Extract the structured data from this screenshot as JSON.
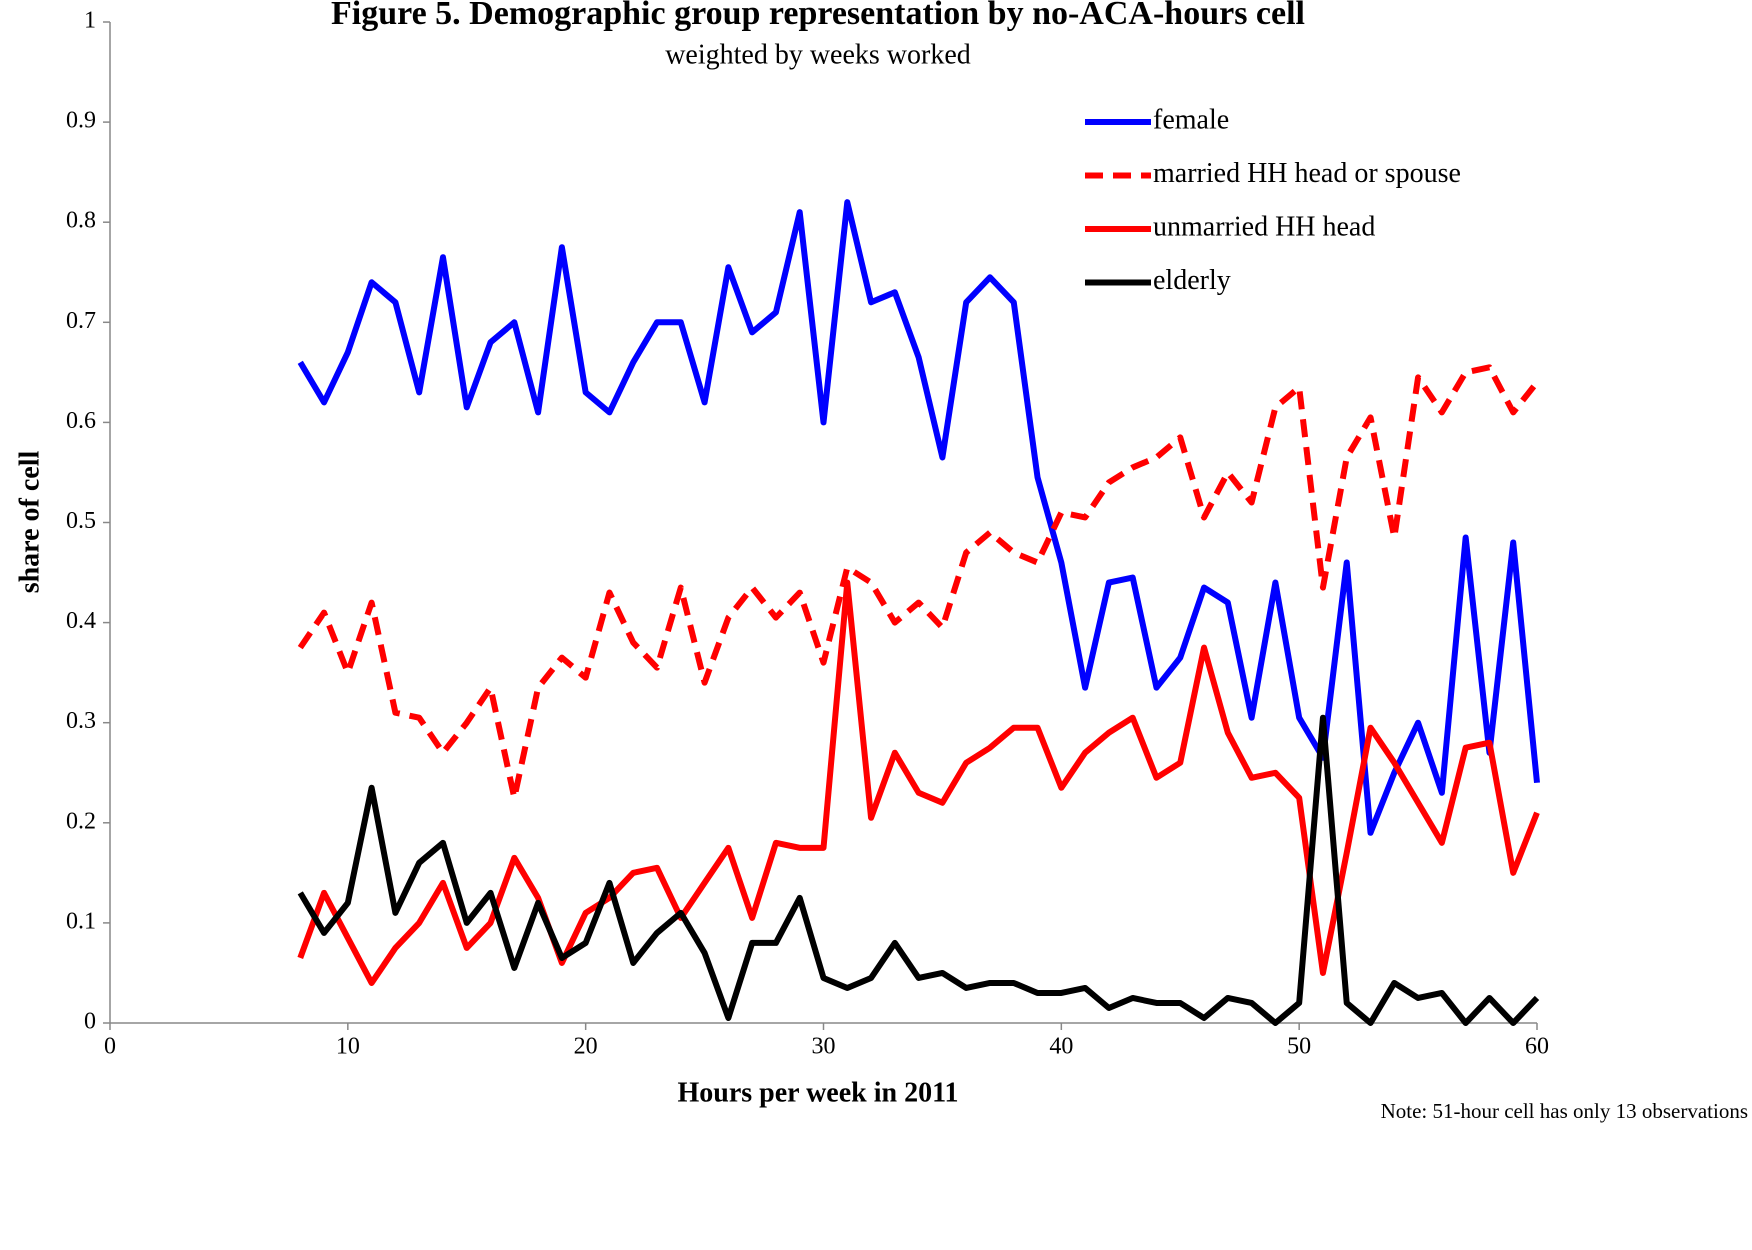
{
  "chart_data": {
    "type": "line",
    "title": "Figure 5.  Demographic group representation by no-ACA-hours cell",
    "subtitle": "weighted by weeks worked",
    "xlabel": "Hours per week in 2011",
    "ylabel": "share of cell",
    "note": "Note: 51-hour cell has only 13 observations",
    "x": [
      8,
      9,
      10,
      11,
      12,
      13,
      14,
      15,
      16,
      17,
      18,
      19,
      20,
      21,
      22,
      23,
      24,
      25,
      26,
      27,
      28,
      29,
      30,
      31,
      32,
      33,
      34,
      35,
      36,
      37,
      38,
      39,
      40,
      41,
      42,
      43,
      44,
      45,
      46,
      47,
      48,
      49,
      50,
      51,
      52,
      53,
      54,
      55,
      56,
      57,
      58,
      59,
      60
    ],
    "series": [
      {
        "name": "female",
        "color": "#0000ff",
        "style": "solid",
        "values": [
          0.66,
          0.62,
          0.67,
          0.74,
          0.72,
          0.63,
          0.765,
          0.615,
          0.68,
          0.7,
          0.61,
          0.775,
          0.63,
          0.61,
          0.66,
          0.7,
          0.7,
          0.62,
          0.755,
          0.69,
          0.71,
          0.81,
          0.6,
          0.82,
          0.72,
          0.73,
          0.665,
          0.565,
          0.72,
          0.745,
          0.72,
          0.545,
          0.46,
          0.335,
          0.44,
          0.445,
          0.335,
          0.365,
          0.435,
          0.42,
          0.305,
          0.44,
          0.305,
          0.265,
          0.46,
          0.19,
          0.25,
          0.3,
          0.23,
          0.485,
          0.27,
          0.48,
          0.24
        ]
      },
      {
        "name": "married HH head or spouse",
        "color": "#ff0000",
        "style": "dashed",
        "values": [
          0.375,
          0.41,
          0.35,
          0.42,
          0.31,
          0.305,
          0.27,
          0.3,
          0.335,
          0.225,
          0.335,
          0.365,
          0.345,
          0.43,
          0.38,
          0.355,
          0.435,
          0.34,
          0.405,
          0.435,
          0.405,
          0.43,
          0.36,
          0.455,
          0.44,
          0.4,
          0.42,
          0.395,
          0.47,
          0.49,
          0.47,
          0.46,
          0.51,
          0.505,
          0.54,
          0.555,
          0.565,
          0.585,
          0.505,
          0.55,
          0.52,
          0.615,
          0.635,
          0.435,
          0.565,
          0.605,
          0.485,
          0.645,
          0.61,
          0.65,
          0.655,
          0.61,
          0.64
        ]
      },
      {
        "name": "unmarried HH head",
        "color": "#ff0000",
        "style": "solid",
        "values": [
          0.065,
          0.13,
          0.085,
          0.04,
          0.075,
          0.1,
          0.14,
          0.075,
          0.1,
          0.165,
          0.125,
          0.06,
          0.11,
          0.125,
          0.15,
          0.155,
          0.105,
          0.14,
          0.175,
          0.105,
          0.18,
          0.175,
          0.175,
          0.44,
          0.205,
          0.27,
          0.23,
          0.22,
          0.26,
          0.275,
          0.295,
          0.295,
          0.235,
          0.27,
          0.29,
          0.305,
          0.245,
          0.26,
          0.375,
          0.29,
          0.245,
          0.25,
          0.225,
          0.05,
          0.17,
          0.295,
          0.26,
          0.22,
          0.18,
          0.275,
          0.28,
          0.15,
          0.21
        ]
      },
      {
        "name": "elderly",
        "color": "#000000",
        "style": "solid",
        "values": [
          0.13,
          0.09,
          0.12,
          0.235,
          0.11,
          0.16,
          0.18,
          0.1,
          0.13,
          0.055,
          0.12,
          0.065,
          0.08,
          0.14,
          0.06,
          0.09,
          0.11,
          0.07,
          0.005,
          0.08,
          0.08,
          0.125,
          0.045,
          0.035,
          0.045,
          0.08,
          0.045,
          0.05,
          0.035,
          0.04,
          0.04,
          0.03,
          0.03,
          0.035,
          0.015,
          0.025,
          0.02,
          0.02,
          0.005,
          0.025,
          0.02,
          0.0,
          0.02,
          0.305,
          0.02,
          0.0,
          0.04,
          0.025,
          0.03,
          0.0,
          0.025,
          0.0,
          0.025
        ]
      }
    ],
    "xlim": [
      0,
      60
    ],
    "xticks": [
      0,
      10,
      20,
      30,
      40,
      50,
      60
    ],
    "ylim": [
      0,
      1
    ],
    "yticks": [
      0,
      0.1,
      0.2,
      0.3,
      0.4,
      0.5,
      0.6,
      0.7,
      0.8,
      0.9,
      1
    ],
    "grid": false,
    "legend": "upper right"
  }
}
